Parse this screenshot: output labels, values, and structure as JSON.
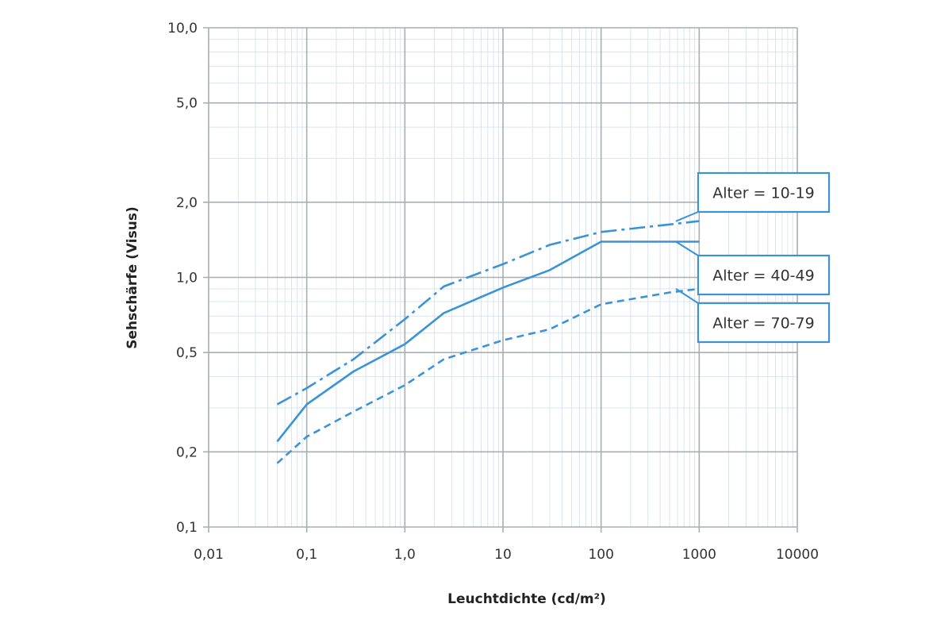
{
  "chart_data": {
    "type": "line",
    "xlabel": "Leuchtdichte (cd/m²)",
    "ylabel": "Sehschärfe (Visus)",
    "x_scale": "log",
    "y_scale": "log",
    "xlim": [
      0.01,
      10000
    ],
    "ylim": [
      0.1,
      10
    ],
    "grid": true,
    "x_ticks": [
      {
        "value": 0.01,
        "label": "0,01"
      },
      {
        "value": 0.1,
        "label": "0,1"
      },
      {
        "value": 1,
        "label": "1,0"
      },
      {
        "value": 10,
        "label": "10"
      },
      {
        "value": 100,
        "label": "100"
      },
      {
        "value": 1000,
        "label": "1000"
      },
      {
        "value": 10000,
        "label": "10000"
      }
    ],
    "y_ticks": [
      {
        "value": 0.1,
        "label": "0,1"
      },
      {
        "value": 0.2,
        "label": "0,2"
      },
      {
        "value": 0.5,
        "label": "0,5"
      },
      {
        "value": 1,
        "label": "1,0"
      },
      {
        "value": 2,
        "label": "2,0"
      },
      {
        "value": 5,
        "label": "5,0"
      },
      {
        "value": 10,
        "label": "10,0"
      }
    ],
    "series": [
      {
        "name": "Alter = 10-19",
        "line_style": "dashdot",
        "color": "#3a93d6",
        "x": [
          0.05,
          0.1,
          0.3,
          1,
          2.5,
          10,
          30,
          100,
          500,
          1000
        ],
        "y": [
          0.31,
          0.36,
          0.47,
          0.68,
          0.92,
          1.13,
          1.35,
          1.52,
          1.63,
          1.68
        ]
      },
      {
        "name": "Alter = 40-49",
        "line_style": "solid",
        "color": "#3a93d6",
        "x": [
          0.05,
          0.1,
          0.3,
          1,
          2.5,
          10,
          30,
          100,
          500,
          1000
        ],
        "y": [
          0.22,
          0.31,
          0.42,
          0.54,
          0.72,
          0.91,
          1.07,
          1.39,
          1.39,
          1.39
        ]
      },
      {
        "name": "Alter = 70-79",
        "line_style": "dashed",
        "color": "#3a93d6",
        "x": [
          0.05,
          0.1,
          0.3,
          1,
          2.5,
          10,
          30,
          100,
          500,
          1000
        ],
        "y": [
          0.18,
          0.23,
          0.29,
          0.37,
          0.47,
          0.56,
          0.62,
          0.78,
          0.87,
          0.9
        ]
      }
    ]
  }
}
